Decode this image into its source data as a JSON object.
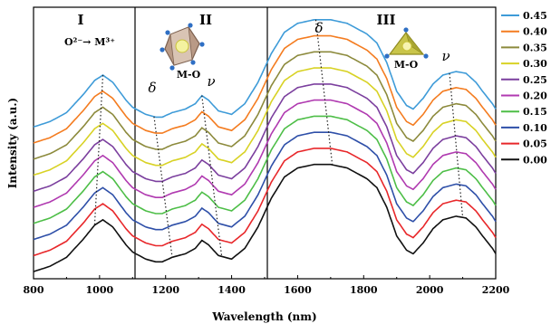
{
  "chart_data": {
    "type": "line",
    "title": "",
    "xlabel": "Wavelength (nm)",
    "ylabel": "Intensity (a.u.)",
    "xlim": [
      800,
      2200
    ],
    "xticks": [
      "800",
      "1000",
      "1200",
      "1400",
      "1600",
      "1800",
      "2000",
      "2200"
    ],
    "y_ticks_shown": false,
    "grid": false,
    "legend_position": "right",
    "region_dividers_x": [
      1100,
      1500
    ],
    "regions": [
      {
        "label": "I",
        "note": "O²⁻→ M³⁺"
      },
      {
        "label": "II",
        "note": "M-O"
      },
      {
        "label": "III",
        "note": "M-O"
      }
    ],
    "annotations": [
      "δ",
      "ν",
      "δ",
      "ν"
    ],
    "series": [
      {
        "name": "0.45",
        "color": "#3E9BD8",
        "offset": 9
      },
      {
        "name": "0.40",
        "color": "#F47C20",
        "offset": 8
      },
      {
        "name": "0.35",
        "color": "#8C8A3C",
        "offset": 7
      },
      {
        "name": "0.30",
        "color": "#D8D225",
        "offset": 6
      },
      {
        "name": "0.25",
        "color": "#7B3F9E",
        "offset": 5
      },
      {
        "name": "0.20",
        "color": "#B03AB0",
        "offset": 4
      },
      {
        "name": "0.15",
        "color": "#4DBE47",
        "offset": 3
      },
      {
        "name": "0.10",
        "color": "#2E4FA8",
        "offset": 2
      },
      {
        "name": "0.05",
        "color": "#E8272A",
        "offset": 1
      },
      {
        "name": "0.00",
        "color": "#111111",
        "offset": 0
      }
    ],
    "profile_x": [
      800,
      850,
      900,
      950,
      985,
      1010,
      1040,
      1080,
      1100,
      1140,
      1170,
      1190,
      1220,
      1260,
      1290,
      1310,
      1330,
      1360,
      1400,
      1440,
      1480,
      1520,
      1560,
      1600,
      1650,
      1700,
      1750,
      1780,
      1810,
      1840,
      1870,
      1900,
      1930,
      1950,
      1980,
      2010,
      2040,
      2080,
      2110,
      2140,
      2160,
      2190,
      2200
    ],
    "profile_y": [
      0.0,
      0.3,
      0.8,
      1.8,
      2.6,
      2.9,
      2.5,
      1.5,
      1.1,
      0.7,
      0.55,
      0.55,
      0.8,
      1.0,
      1.3,
      1.75,
      1.5,
      0.9,
      0.7,
      1.3,
      2.5,
      4.1,
      5.3,
      5.8,
      6.0,
      6.0,
      5.8,
      5.5,
      5.2,
      4.7,
      3.6,
      2.0,
      1.2,
      1.0,
      1.6,
      2.4,
      2.9,
      3.1,
      3.0,
      2.5,
      2.0,
      1.3,
      1.0
    ],
    "offset_step": 0.9
  }
}
